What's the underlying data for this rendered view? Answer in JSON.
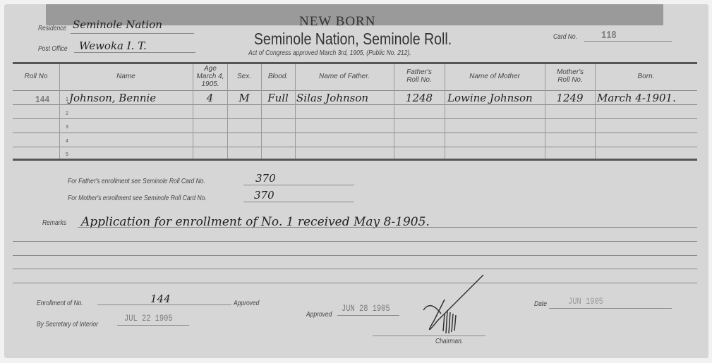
{
  "header": {
    "heading": "NEW BORN",
    "title": "Seminole Nation, Seminole Roll.",
    "subtitle": "Act of Congress approved March 3rd, 1905, (Public No. 212).",
    "residence_label": "Residence",
    "residence_value": "Seminole Nation",
    "post_office_label": "Post Office",
    "post_office_value": "Wewoka I. T.",
    "card_no_label": "Card No.",
    "card_no_value": "118"
  },
  "table": {
    "columns": [
      "Roll No",
      "Name",
      "Age March 4, 1905.",
      "Sex.",
      "Blood.",
      "Name of Father.",
      "Father's Roll No.",
      "Name of Mother",
      "Mother's Roll No.",
      "Born."
    ],
    "row_numbers": [
      "1",
      "2",
      "3",
      "4",
      "5"
    ],
    "rows": [
      {
        "roll_no": "144",
        "name": "Johnson, Bennie",
        "age": "4",
        "sex": "M",
        "blood": "Full",
        "father": "Silas Johnson",
        "father_roll": "1248",
        "mother": "Lowine Johnson",
        "mother_roll": "1249",
        "born": "March 4-1901."
      }
    ]
  },
  "enrollment": {
    "father_label": "For Father's enrollment see Seminole Roll Card No.",
    "father_value": "370",
    "mother_label": "For Mother's enrollment see Seminole Roll Card No.",
    "mother_value": "370"
  },
  "remarks": {
    "label": "Remarks",
    "value": "Application for enrollment of No. 1 received May 8-1905."
  },
  "footer": {
    "enrollment_label": "Enrollment of No.",
    "enrollment_value": "144",
    "approved_label": "Approved",
    "secretary_label": "By Secretary of Interior",
    "secretary_stamp": "JUL 22 1905",
    "approved2_label": "Approved",
    "approved2_stamp": "JUN 28 1905",
    "chairman_label": "Chairman.",
    "date_label": "Date",
    "date_stamp": "JUN 1905"
  }
}
